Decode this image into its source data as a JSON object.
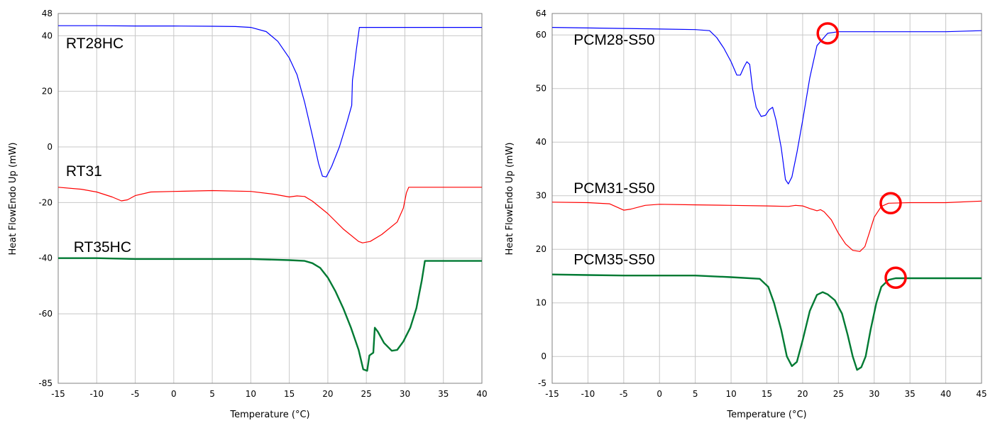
{
  "chart_data": [
    {
      "type": "line",
      "xlabel": "Temperature (°C)",
      "ylabel": "Heat FlowEndo Up (mW)",
      "xlim": [
        -15,
        40
      ],
      "ylim": [
        -85,
        48
      ],
      "xticks": [
        -15,
        -10,
        -5,
        0,
        5,
        10,
        15,
        20,
        25,
        30,
        35,
        40
      ],
      "yticks": [
        48,
        40,
        20,
        0,
        -20,
        -40,
        -60,
        -85
      ],
      "grid": true,
      "series": [
        {
          "name": "RT28HC",
          "color": "#0000ff",
          "label_at": [
            -14,
            35.5
          ],
          "width": 1.2,
          "points": [
            [
              -15,
              43.6
            ],
            [
              -10,
              43.6
            ],
            [
              -5,
              43.5
            ],
            [
              0,
              43.5
            ],
            [
              5,
              43.4
            ],
            [
              8,
              43.3
            ],
            [
              10,
              43
            ],
            [
              12,
              41.5
            ],
            [
              13.5,
              38
            ],
            [
              15,
              32
            ],
            [
              16,
              26
            ],
            [
              17,
              16
            ],
            [
              18,
              4
            ],
            [
              18.8,
              -6
            ],
            [
              19.3,
              -10.5
            ],
            [
              19.8,
              -10.8
            ],
            [
              20.5,
              -7
            ],
            [
              21.5,
              0
            ],
            [
              22.5,
              9
            ],
            [
              23.1,
              15
            ],
            [
              23.2,
              24
            ],
            [
              23.4,
              28
            ],
            [
              23.7,
              35
            ],
            [
              24.1,
              43
            ],
            [
              24.5,
              43
            ],
            [
              30,
              43
            ],
            [
              35,
              43
            ],
            [
              40,
              43
            ]
          ]
        },
        {
          "name": "RT31",
          "color": "#ff0000",
          "label_at": [
            -14,
            -10.5
          ],
          "width": 1.2,
          "points": [
            [
              -15,
              -14.5
            ],
            [
              -12,
              -15.2
            ],
            [
              -10,
              -16.2
            ],
            [
              -8,
              -18
            ],
            [
              -6.8,
              -19.4
            ],
            [
              -6,
              -19
            ],
            [
              -5,
              -17.5
            ],
            [
              -3,
              -16.2
            ],
            [
              0,
              -16
            ],
            [
              5,
              -15.7
            ],
            [
              10,
              -16
            ],
            [
              13,
              -17
            ],
            [
              15,
              -18
            ],
            [
              16,
              -17.6
            ],
            [
              17,
              -17.8
            ],
            [
              18,
              -19.5
            ],
            [
              20,
              -24
            ],
            [
              22,
              -29.5
            ],
            [
              24,
              -34
            ],
            [
              24.5,
              -34.5
            ],
            [
              25.5,
              -34
            ],
            [
              27,
              -31.5
            ],
            [
              29,
              -27
            ],
            [
              29.8,
              -22
            ],
            [
              30.2,
              -16.5
            ],
            [
              30.5,
              -14.5
            ],
            [
              35,
              -14.5
            ],
            [
              40,
              -14.5
            ]
          ]
        },
        {
          "name": "RT35HC",
          "color": "#007a33",
          "label_at": [
            -13,
            -37.8
          ],
          "width": 2.4,
          "points": [
            [
              -15,
              -40
            ],
            [
              -10,
              -40
            ],
            [
              -5,
              -40.3
            ],
            [
              0,
              -40.3
            ],
            [
              5,
              -40.3
            ],
            [
              10,
              -40.3
            ],
            [
              15,
              -40.7
            ],
            [
              17,
              -41
            ],
            [
              18,
              -41.8
            ],
            [
              19,
              -43.5
            ],
            [
              20,
              -47
            ],
            [
              21,
              -52
            ],
            [
              22,
              -58
            ],
            [
              23,
              -65
            ],
            [
              24,
              -73
            ],
            [
              24.6,
              -80
            ],
            [
              25.1,
              -80.5
            ],
            [
              25.4,
              -75
            ],
            [
              25.9,
              -74
            ],
            [
              26.1,
              -65
            ],
            [
              26.5,
              -66.5
            ],
            [
              27.3,
              -70.5
            ],
            [
              28.3,
              -73.3
            ],
            [
              29,
              -73
            ],
            [
              29.8,
              -70
            ],
            [
              30.7,
              -65
            ],
            [
              31.5,
              -58
            ],
            [
              32.2,
              -48
            ],
            [
              32.6,
              -41
            ],
            [
              33,
              -41
            ],
            [
              35,
              -41
            ],
            [
              40,
              -41
            ]
          ]
        }
      ]
    },
    {
      "type": "line",
      "xlabel": "Temperature (°C)",
      "ylabel": "Heat FlowEndo Up (mW)",
      "xlim": [
        -15,
        45
      ],
      "ylim": [
        -5,
        64
      ],
      "xticks": [
        -15,
        -10,
        -5,
        0,
        5,
        10,
        15,
        20,
        25,
        30,
        35,
        40,
        45
      ],
      "yticks": [
        64,
        60,
        50,
        40,
        30,
        20,
        10,
        0,
        -5
      ],
      "grid": true,
      "series": [
        {
          "name": "PCM28-S50",
          "color": "#0000ff",
          "label_at": [
            -12,
            58.2
          ],
          "width": 1.2,
          "points": [
            [
              -15,
              61.4
            ],
            [
              -10,
              61.3
            ],
            [
              -5,
              61.2
            ],
            [
              0,
              61.1
            ],
            [
              5,
              61
            ],
            [
              7,
              60.8
            ],
            [
              8,
              59.5
            ],
            [
              9,
              57.5
            ],
            [
              10,
              55
            ],
            [
              10.8,
              52.5
            ],
            [
              11.3,
              52.5
            ],
            [
              11.8,
              54
            ],
            [
              12.2,
              55
            ],
            [
              12.6,
              54.5
            ],
            [
              13,
              50
            ],
            [
              13.5,
              46.5
            ],
            [
              14.2,
              44.8
            ],
            [
              14.8,
              45
            ],
            [
              15.3,
              46
            ],
            [
              15.8,
              46.5
            ],
            [
              16.3,
              44
            ],
            [
              17,
              39
            ],
            [
              17.6,
              33
            ],
            [
              18,
              32.2
            ],
            [
              18.5,
              33.5
            ],
            [
              19.2,
              38
            ],
            [
              20,
              44
            ],
            [
              21,
              52
            ],
            [
              22,
              58
            ],
            [
              23.5,
              60.3
            ],
            [
              25,
              60.6
            ],
            [
              30,
              60.6
            ],
            [
              35,
              60.6
            ],
            [
              40,
              60.6
            ],
            [
              45,
              60.8
            ]
          ]
        },
        {
          "name": "PCM31-S50",
          "color": "#ff0000",
          "label_at": [
            -12,
            30.5
          ],
          "width": 1.2,
          "points": [
            [
              -15,
              28.8
            ],
            [
              -10,
              28.7
            ],
            [
              -7,
              28.5
            ],
            [
              -5,
              27.3
            ],
            [
              -4,
              27.5
            ],
            [
              -2,
              28.2
            ],
            [
              0,
              28.4
            ],
            [
              5,
              28.3
            ],
            [
              10,
              28.2
            ],
            [
              15,
              28.1
            ],
            [
              18,
              28
            ],
            [
              19,
              28.2
            ],
            [
              20,
              28.1
            ],
            [
              21,
              27.6
            ],
            [
              22,
              27.2
            ],
            [
              22.5,
              27.4
            ],
            [
              23,
              27
            ],
            [
              24,
              25.5
            ],
            [
              25,
              23
            ],
            [
              26,
              21
            ],
            [
              27,
              19.8
            ],
            [
              28,
              19.6
            ],
            [
              28.7,
              20.5
            ],
            [
              29.3,
              23
            ],
            [
              30,
              26
            ],
            [
              31,
              28
            ],
            [
              32,
              28.6
            ],
            [
              35,
              28.7
            ],
            [
              40,
              28.7
            ],
            [
              45,
              29
            ]
          ]
        },
        {
          "name": "PCM35-S50",
          "color": "#007a33",
          "label_at": [
            -12,
            17.2
          ],
          "width": 2.4,
          "points": [
            [
              -15,
              15.3
            ],
            [
              -10,
              15.2
            ],
            [
              -5,
              15.1
            ],
            [
              0,
              15.1
            ],
            [
              5,
              15.1
            ],
            [
              10,
              14.8
            ],
            [
              14,
              14.5
            ],
            [
              15.2,
              13
            ],
            [
              16,
              10
            ],
            [
              17,
              5
            ],
            [
              17.8,
              0
            ],
            [
              18.5,
              -1.8
            ],
            [
              19.2,
              -1
            ],
            [
              20,
              3
            ],
            [
              21,
              8.5
            ],
            [
              22,
              11.5
            ],
            [
              22.8,
              12
            ],
            [
              23.5,
              11.6
            ],
            [
              24.5,
              10.5
            ],
            [
              25.5,
              8
            ],
            [
              26.3,
              4
            ],
            [
              27,
              0
            ],
            [
              27.6,
              -2.5
            ],
            [
              28.2,
              -2
            ],
            [
              28.8,
              0
            ],
            [
              29.5,
              5
            ],
            [
              30.3,
              10
            ],
            [
              31,
              13
            ],
            [
              32,
              14.3
            ],
            [
              33,
              14.6
            ],
            [
              35,
              14.6
            ],
            [
              40,
              14.6
            ],
            [
              45,
              14.6
            ]
          ]
        }
      ],
      "markers": [
        {
          "type": "circle",
          "color": "#ff0000",
          "x": 23.5,
          "y": 60.3
        },
        {
          "type": "circle",
          "color": "#ff0000",
          "x": 32.3,
          "y": 28.6
        },
        {
          "type": "circle",
          "color": "#ff0000",
          "x": 33,
          "y": 14.7
        }
      ]
    }
  ]
}
